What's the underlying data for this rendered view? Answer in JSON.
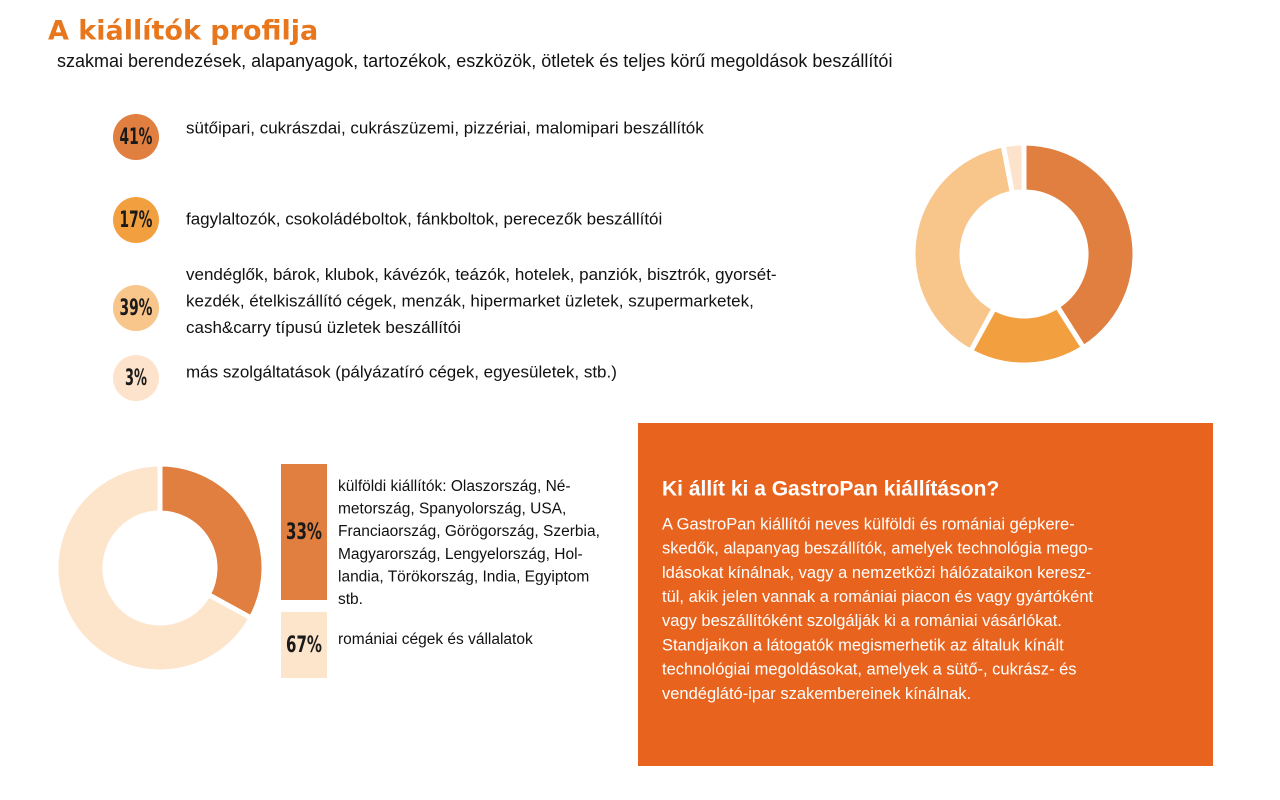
{
  "title": "A kiállítók profilja",
  "subtitle": "szakmai berendezések, alapanyagok, tartozékok, eszközök, ötletek és teljes körű megoldások beszállítói",
  "chart_data": [
    {
      "type": "pie",
      "donut": true,
      "categories": [
        "sütőipari, cukrászdai, cukrászüzemi, pizzériai, malomipari beszállítók",
        "fagylaltozók, csokoládéboltok, fánkboltok, perecezők beszállítói",
        "vendéglők, bárok, klubok, kávézók, teázók, hotelek, panziók, bisztrók, gyorsét-\nkezdék, ételkiszállító cégek, menzák, hipermarket üzletek, szupermarketek,\ncash&carry típusú üzletek beszállítói",
        "más szolgáltatások (pályázatíró cégek, egyesületek, stb.)"
      ],
      "values": [
        41,
        17,
        39,
        3
      ],
      "value_labels": [
        "41%",
        "17%",
        "39%",
        "3%"
      ],
      "colors": [
        "#e07f3f",
        "#f2a03f",
        "#f8c58b",
        "#fde3cb"
      ]
    },
    {
      "type": "pie",
      "donut": true,
      "categories": [
        "külföldi kiállítók: Olaszország, Né-\nmetország, Spanyolország, USA,\nFranciaország, Görögország, Szerbia,\nMagyarország, Lengyelország, Hol-\nlandia, Törökország, India, Egyiptom\nstb.",
        "romániai cégek és vállalatok"
      ],
      "values": [
        33,
        67
      ],
      "value_labels": [
        "33%",
        "67%"
      ],
      "colors": [
        "#e07f3f",
        "#fde5cc"
      ]
    }
  ],
  "info_box": {
    "title": "Ki állít ki a GastroPan kiállításon?",
    "lines": [
      "A GastroPan kiállítói neves külföldi és romániai gépkere-",
      "skedők, alapanyag beszállítók, amelyek technológia mego-",
      "ldásokat kínálnak, vagy a nemzetközi hálózataikon keresz-",
      "tül, akik jelen vannak a romániai piacon és vagy gyártóként",
      "vagy beszállítóként szolgálják ki a romániai vásárlókat.",
      "Standjaikon a látogatók megismerhetik az általuk kínált",
      "technológiai megoldásokat, amelyek a sütő-, cukrász- és",
      "vendéglátó-ipar szakembereinek kínálnak."
    ],
    "color": "#e8641e"
  }
}
